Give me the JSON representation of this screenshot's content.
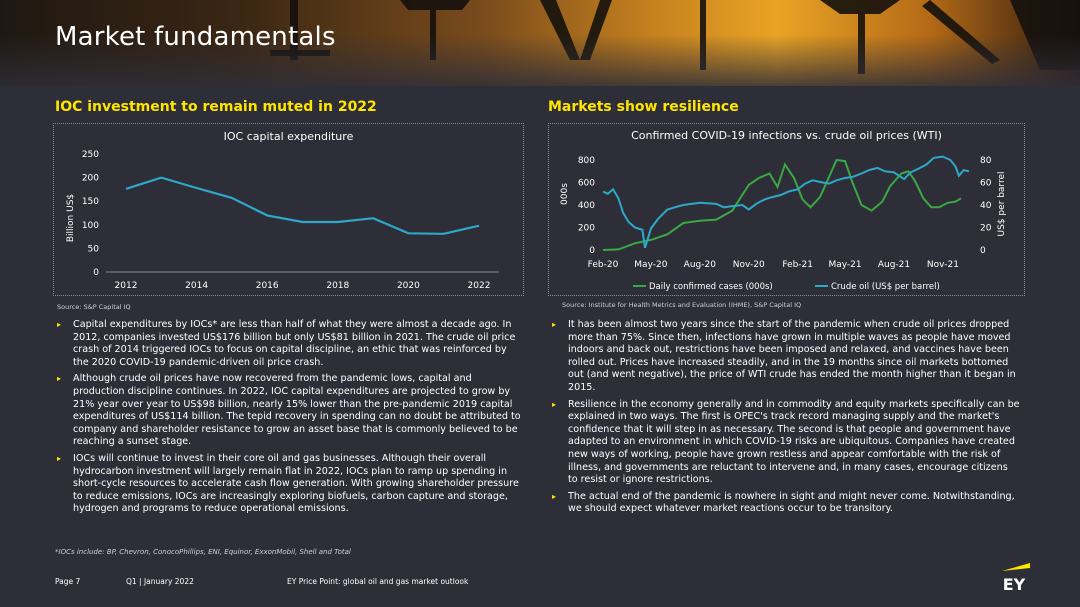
{
  "page": {
    "title": "Market fundamentals",
    "footnote": "*IOCs include: BP, Chevron, ConocoPhillips, ENI, Equinor, ExxonMobil, Shell and Total",
    "footer": {
      "page": "Page 7",
      "date": "Q1 | January 2022",
      "publication": "EY Price Point: global oil and gas market outlook"
    },
    "logo": "EY",
    "accent_color": "#ffe600",
    "background_color": "#2e2e38"
  },
  "left": {
    "heading": "IOC investment to remain muted in 2022",
    "source": "Source: S&P Capital IQ",
    "bullets": [
      "Capital expenditures by IOCs* are less than half of what they were almost a decade ago. In 2012, companies invested US$176 billion but only US$81 billion in 2021. The crude oil price crash of 2014 triggered IOCs to focus on capital discipline, an ethic that was reinforced by the 2020 COVID-19 pandemic-driven oil price crash.",
      "Although crude oil prices have now recovered from the pandemic lows, capital and production discipline continues. In 2022, IOC capital expenditures are projected to grow by 21% year over year to US$98 billion, nearly 15% lower than the pre-pandemic 2019 capital expenditures of US$114 billion. The tepid recovery in spending can no doubt be attributed to company and shareholder resistance to grow an asset base that is commonly believed to be reaching a sunset stage.",
      "IOCs will continue to invest in their core oil and gas businesses. Although their overall hydrocarbon investment will largely remain flat in 2022, IOCs plan to ramp up spending in short-cycle resources to accelerate cash flow generation. With growing shareholder pressure to reduce emissions, IOCs are increasingly exploring biofuels, carbon capture and storage, hydrogen and programs to reduce operational emissions."
    ]
  },
  "right": {
    "heading": "Markets show resilience",
    "source": "Source: Institute for Health Metrics and Evaluation (IHME), S&P Capital IQ",
    "bullets": [
      "It has been almost two years since the start of the pandemic when crude oil prices dropped more than 75%. Since then, infections have grown in multiple waves as people have moved indoors and back out, restrictions have been imposed and relaxed, and vaccines have been rolled out. Prices have increased steadily, and in the 19 months since oil markets bottomed out (and went negative), the price of WTI crude has ended the month higher than it began in 2015.",
      "Resilience in the economy generally and in commodity and equity markets specifically can be explained in two ways. The first is OPEC's track record managing supply and the market's confidence that it will step in as necessary. The second is that people and government have adapted to an environment in which COVID-19 risks are ubiquitous. Companies have created new ways of working, people have grown restless and appear comfortable with the risk of illness, and governments are reluctant to intervene and, in many cases, encourage citizens to resist or ignore restrictions.",
      "The actual end of the pandemic is nowhere in sight and might never come. Notwithstanding, we should expect whatever market reactions occur to be transitory."
    ]
  },
  "chart_data": [
    {
      "type": "line",
      "title": "IOC capital expenditure",
      "xlabel": "",
      "ylabel": "Billion US$",
      "x": [
        2012,
        2013,
        2014,
        2015,
        2016,
        2017,
        2018,
        2019,
        2020,
        2021,
        2022
      ],
      "series": [
        {
          "values": [
            176,
            200,
            178,
            157,
            120,
            106,
            106,
            114,
            82,
            81,
            98
          ],
          "color": "#2ea8c8"
        }
      ],
      "ylim": [
        0,
        250
      ],
      "yticks": [
        0,
        50,
        100,
        150,
        200,
        250
      ],
      "xticks": [
        "2012",
        "2014",
        "2016",
        "2018",
        "2020",
        "2022"
      ],
      "grid": false
    },
    {
      "type": "line",
      "title": "Confirmed COVID-19 infections vs. crude oil prices (WTI)",
      "xlabel": "",
      "ylabel": "000s",
      "ylabel_right": "US$ per barrel",
      "ylim": [
        0,
        800
      ],
      "ylim_right": [
        0,
        80
      ],
      "yticks": [
        "0",
        "200",
        "400",
        "600",
        "800"
      ],
      "yticks_right": [
        "0",
        "20",
        "40",
        "60",
        "80"
      ],
      "xticks": [
        "Feb-20",
        "May-20",
        "Aug-20",
        "Nov-20",
        "Feb-21",
        "May-21",
        "Aug-21",
        "Nov-21"
      ],
      "legend": "bottom",
      "series": [
        {
          "name": "Daily confirmed cases (000s)",
          "axis": "left",
          "color": "#3aa845",
          "points": [
            [
              "2020-02-01",
              0
            ],
            [
              "2020-03-01",
              5
            ],
            [
              "2020-04-01",
              60
            ],
            [
              "2020-05-01",
              90
            ],
            [
              "2020-06-01",
              140
            ],
            [
              "2020-07-01",
              240
            ],
            [
              "2020-08-01",
              260
            ],
            [
              "2020-09-01",
              270
            ],
            [
              "2020-10-01",
              350
            ],
            [
              "2020-11-01",
              580
            ],
            [
              "2020-11-20",
              640
            ],
            [
              "2020-12-10",
              680
            ],
            [
              "2020-12-25",
              560
            ],
            [
              "2021-01-08",
              760
            ],
            [
              "2021-01-25",
              640
            ],
            [
              "2021-02-10",
              450
            ],
            [
              "2021-02-25",
              380
            ],
            [
              "2021-03-15",
              470
            ],
            [
              "2021-04-01",
              650
            ],
            [
              "2021-04-15",
              800
            ],
            [
              "2021-05-01",
              790
            ],
            [
              "2021-05-15",
              600
            ],
            [
              "2021-06-01",
              400
            ],
            [
              "2021-06-20",
              350
            ],
            [
              "2021-07-10",
              430
            ],
            [
              "2021-07-25",
              570
            ],
            [
              "2021-08-15",
              680
            ],
            [
              "2021-08-28",
              700
            ],
            [
              "2021-09-10",
              610
            ],
            [
              "2021-09-25",
              460
            ],
            [
              "2021-10-10",
              380
            ],
            [
              "2021-10-25",
              380
            ],
            [
              "2021-11-10",
              420
            ],
            [
              "2021-11-25",
              430
            ],
            [
              "2021-12-05",
              460
            ]
          ]
        },
        {
          "name": "Crude oil (US$ per barrel)",
          "axis": "right",
          "color": "#2ea8c8",
          "points": [
            [
              "2020-02-01",
              52
            ],
            [
              "2020-02-10",
              50
            ],
            [
              "2020-02-20",
              54
            ],
            [
              "2020-03-01",
              46
            ],
            [
              "2020-03-10",
              33
            ],
            [
              "2020-03-20",
              25
            ],
            [
              "2020-04-01",
              20
            ],
            [
              "2020-04-15",
              18
            ],
            [
              "2020-04-20",
              2
            ],
            [
              "2020-05-01",
              19
            ],
            [
              "2020-05-15",
              28
            ],
            [
              "2020-06-01",
              36
            ],
            [
              "2020-06-15",
              38
            ],
            [
              "2020-07-01",
              40
            ],
            [
              "2020-08-01",
              42
            ],
            [
              "2020-09-01",
              41
            ],
            [
              "2020-09-15",
              38
            ],
            [
              "2020-10-01",
              39
            ],
            [
              "2020-10-20",
              40
            ],
            [
              "2020-11-01",
              36
            ],
            [
              "2020-11-15",
              41
            ],
            [
              "2020-12-01",
              45
            ],
            [
              "2020-12-15",
              47
            ],
            [
              "2021-01-01",
              49
            ],
            [
              "2021-01-15",
              52
            ],
            [
              "2021-02-01",
              54
            ],
            [
              "2021-02-15",
              59
            ],
            [
              "2021-03-01",
              62
            ],
            [
              "2021-03-20",
              60
            ],
            [
              "2021-04-01",
              59
            ],
            [
              "2021-04-15",
              62
            ],
            [
              "2021-05-01",
              64
            ],
            [
              "2021-05-15",
              65
            ],
            [
              "2021-06-01",
              68
            ],
            [
              "2021-06-15",
              71
            ],
            [
              "2021-07-01",
              73
            ],
            [
              "2021-07-15",
              70
            ],
            [
              "2021-08-01",
              69
            ],
            [
              "2021-08-20",
              63
            ],
            [
              "2021-09-01",
              69
            ],
            [
              "2021-09-15",
              72
            ],
            [
              "2021-10-01",
              76
            ],
            [
              "2021-10-15",
              82
            ],
            [
              "2021-11-01",
              83
            ],
            [
              "2021-11-15",
              80
            ],
            [
              "2021-11-25",
              74
            ],
            [
              "2021-12-01",
              66
            ],
            [
              "2021-12-10",
              71
            ],
            [
              "2021-12-20",
              70
            ]
          ]
        }
      ]
    }
  ]
}
